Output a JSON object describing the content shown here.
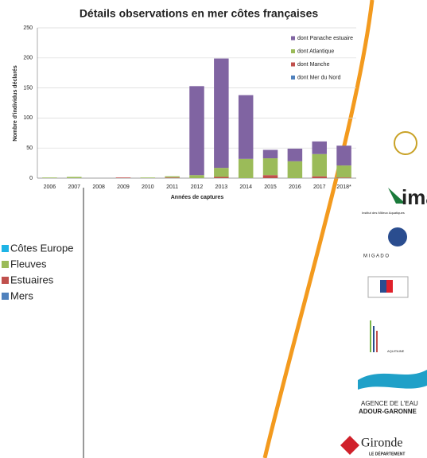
{
  "chart_data": {
    "type": "stacked-bar",
    "title": "Détails observations en mer côtes françaises",
    "x_label": "Années de captures",
    "y_label": "Nombre d'individus déclarés",
    "categories": [
      "2006",
      "2007",
      "2008",
      "2009",
      "2010",
      "2011",
      "2012",
      "2013",
      "2014",
      "2015",
      "2016",
      "2017",
      "2018*"
    ],
    "series": [
      {
        "name": "dont Panache estuaire",
        "color": "#8064a2",
        "values": [
          0,
          0,
          0,
          0,
          0,
          0,
          148,
          182,
          106,
          14,
          21,
          21,
          33
        ]
      },
      {
        "name": "dont Atlantique",
        "color": "#9bbb59",
        "values": [
          1,
          2,
          0,
          0,
          1,
          2,
          5,
          15,
          32,
          28,
          28,
          37,
          20
        ]
      },
      {
        "name": "dont Manche",
        "color": "#c0504d",
        "values": [
          0,
          0,
          0,
          1,
          0,
          1,
          0,
          2,
          0,
          5,
          0,
          3,
          1
        ]
      },
      {
        "name": "dont Mer du Nord",
        "color": "#4f81bd",
        "values": [
          0,
          0,
          0,
          0,
          0,
          0,
          0,
          0,
          0,
          0,
          0,
          0,
          0
        ]
      }
    ],
    "ylim": [
      0,
      250
    ],
    "yticks": [
      0,
      50,
      100,
      150,
      200,
      250
    ],
    "grid": true,
    "legend": "top-right"
  },
  "slide_legend": [
    {
      "label": "Côtes Europe",
      "color": "#1fb4e6"
    },
    {
      "label": "Fleuves",
      "color": "#9bbb59"
    },
    {
      "label": "Estuaires",
      "color": "#c0504d"
    },
    {
      "label": "Mers",
      "color": "#4f81bd"
    }
  ],
  "logos": {
    "imag": "ima",
    "imag_sub": "Institut des Milieux Aquatiques",
    "migado": "M I G A D O",
    "agence_1": "AGENCE DE L'EAU",
    "agence_2": "ADOUR-GARONNE",
    "gironde": "Gironde",
    "gironde_sub": "LE DÉPARTEMENT",
    "aquitaine": "AQUITAINE"
  }
}
